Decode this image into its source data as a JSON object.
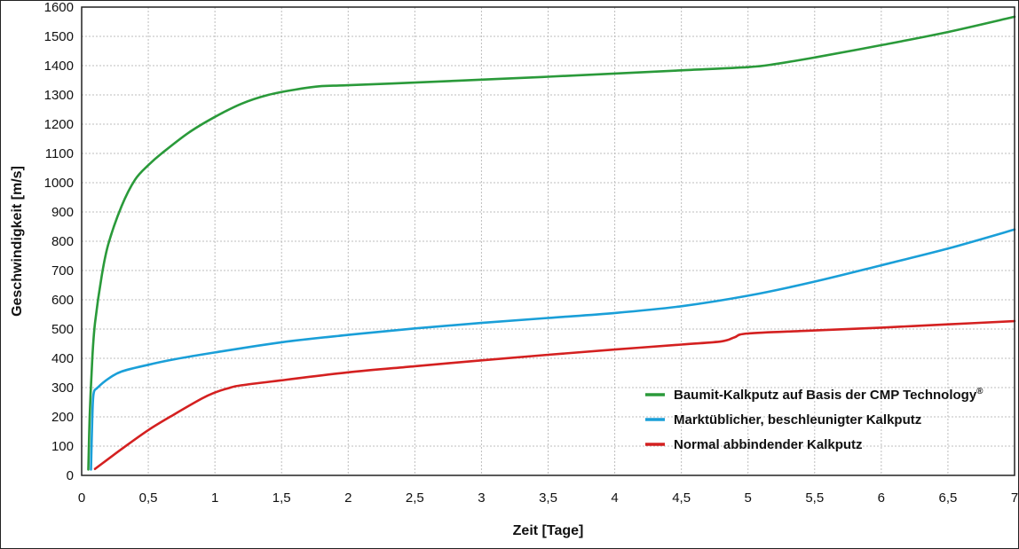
{
  "chart_data": {
    "type": "line",
    "xlabel": "Zeit [Tage]",
    "ylabel": "Geschwindigkeit [m/s]",
    "xlim": [
      0,
      7
    ],
    "ylim": [
      0,
      1600
    ],
    "x_ticks": [
      "0",
      "0,5",
      "1",
      "1,5",
      "2",
      "2,5",
      "3",
      "3,5",
      "4",
      "4,5",
      "5",
      "5,5",
      "6",
      "6,5",
      "7"
    ],
    "y_ticks": [
      "0",
      "100",
      "200",
      "300",
      "400",
      "500",
      "600",
      "700",
      "800",
      "900",
      "1000",
      "1100",
      "1200",
      "1300",
      "1400",
      "1500",
      "1600"
    ],
    "grid": true,
    "legend_position": "bottom-right",
    "series": [
      {
        "name": "Baumit-Kalkputz auf Basis der CMP Technology",
        "name_suffix": "®",
        "color": "#2a9a3a",
        "points": [
          [
            0.05,
            20
          ],
          [
            0.06,
            200
          ],
          [
            0.08,
            400
          ],
          [
            0.1,
            520
          ],
          [
            0.15,
            680
          ],
          [
            0.2,
            790
          ],
          [
            0.3,
            920
          ],
          [
            0.4,
            1010
          ],
          [
            0.5,
            1060
          ],
          [
            0.6,
            1100
          ],
          [
            0.8,
            1170
          ],
          [
            1.0,
            1225
          ],
          [
            1.2,
            1270
          ],
          [
            1.4,
            1300
          ],
          [
            1.6,
            1318
          ],
          [
            1.8,
            1330
          ],
          [
            2.0,
            1333
          ],
          [
            2.5,
            1342
          ],
          [
            3.0,
            1352
          ],
          [
            3.5,
            1362
          ],
          [
            4.0,
            1373
          ],
          [
            4.5,
            1384
          ],
          [
            5.0,
            1395
          ],
          [
            5.2,
            1405
          ],
          [
            5.5,
            1428
          ],
          [
            6.0,
            1470
          ],
          [
            6.5,
            1515
          ],
          [
            7.0,
            1567
          ]
        ]
      },
      {
        "name": "Marktüblicher, beschleunigter Kalkputz",
        "color": "#1a9fd8",
        "points": [
          [
            0.07,
            20
          ],
          [
            0.08,
            200
          ],
          [
            0.09,
            280
          ],
          [
            0.12,
            300
          ],
          [
            0.2,
            330
          ],
          [
            0.3,
            355
          ],
          [
            0.5,
            378
          ],
          [
            0.7,
            397
          ],
          [
            1.0,
            420
          ],
          [
            1.5,
            455
          ],
          [
            2.0,
            480
          ],
          [
            2.5,
            502
          ],
          [
            3.0,
            521
          ],
          [
            3.5,
            538
          ],
          [
            4.0,
            555
          ],
          [
            4.5,
            578
          ],
          [
            5.0,
            614
          ],
          [
            5.5,
            662
          ],
          [
            6.0,
            718
          ],
          [
            6.5,
            775
          ],
          [
            7.0,
            840
          ]
        ]
      },
      {
        "name": "Normal abbindender Kalkputz",
        "color": "#d42020",
        "points": [
          [
            0.1,
            22
          ],
          [
            0.3,
            90
          ],
          [
            0.5,
            155
          ],
          [
            0.7,
            210
          ],
          [
            0.9,
            262
          ],
          [
            1.0,
            283
          ],
          [
            1.1,
            298
          ],
          [
            1.2,
            308
          ],
          [
            1.5,
            325
          ],
          [
            2.0,
            352
          ],
          [
            2.5,
            373
          ],
          [
            3.0,
            393
          ],
          [
            3.5,
            412
          ],
          [
            4.0,
            430
          ],
          [
            4.5,
            447
          ],
          [
            4.8,
            458
          ],
          [
            4.9,
            472
          ],
          [
            5.0,
            485
          ],
          [
            5.5,
            495
          ],
          [
            6.0,
            505
          ],
          [
            6.5,
            516
          ],
          [
            7.0,
            527
          ]
        ]
      }
    ]
  }
}
